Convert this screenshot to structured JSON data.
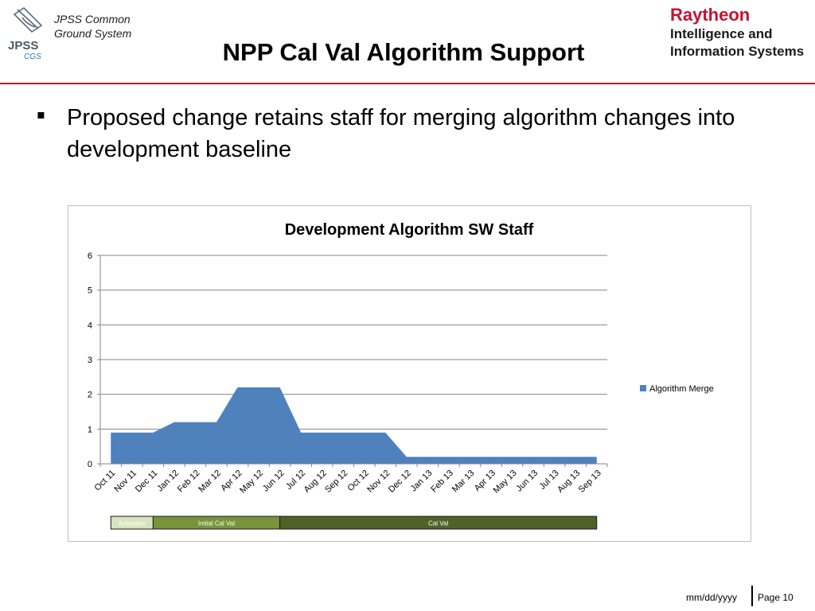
{
  "header": {
    "org_line1": "JPSS Common",
    "org_line2": "Ground System",
    "logo_text": "JPSS",
    "logo_sub": "CGS",
    "title": "NPP Cal Val Algorithm Support",
    "company": "Raytheon",
    "division_line1": "Intelligence and",
    "division_line2": "Information Systems",
    "accent_color": "#c8102e"
  },
  "body": {
    "bullet_symbol": "▪",
    "bullet_text": "Proposed change retains staff for merging algorithm changes into development baseline"
  },
  "chart_data": {
    "type": "area",
    "title": "Development Algorithm SW Staff",
    "xlabel": "",
    "ylabel": "",
    "ylim": [
      0,
      6
    ],
    "yticks": [
      0,
      1,
      2,
      3,
      4,
      5,
      6
    ],
    "grid": true,
    "legend_position": "right",
    "categories": [
      "Oct 11",
      "Nov 11",
      "Dec 11",
      "Jan 12",
      "Feb 12",
      "Mar 12",
      "Apr 12",
      "May 12",
      "Jun 12",
      "Jul 12",
      "Aug 12",
      "Sep 12",
      "Oct 12",
      "Nov 12",
      "Dec 12",
      "Jan 13",
      "Feb 13",
      "Mar 13",
      "Apr 13",
      "May 13",
      "Jun 13",
      "Jul 13",
      "Aug 13",
      "Sep 13"
    ],
    "series": [
      {
        "name": "Algorithm Merge",
        "color": "#4f81bd",
        "values": [
          0.9,
          0.9,
          0.9,
          1.2,
          1.2,
          1.2,
          2.2,
          2.2,
          2.2,
          0.9,
          0.9,
          0.9,
          0.9,
          0.9,
          0.2,
          0.2,
          0.2,
          0.2,
          0.2,
          0.2,
          0.2,
          0.2,
          0.2,
          0.2
        ]
      }
    ],
    "phases": [
      {
        "label": "Activation",
        "start": "Oct 11",
        "end": "Dec 11",
        "color": "#d7e4bd",
        "text_color": "#ffffff"
      },
      {
        "label": "Initial Cal Val",
        "start": "Dec 11",
        "end": "Jun 12",
        "color": "#77933c",
        "text_color": "#ffffff"
      },
      {
        "label": "Cal Val",
        "start": "Jun 12",
        "end": "Sep 13",
        "color": "#4f6228",
        "text_color": "#ffffff"
      }
    ]
  },
  "footer": {
    "date": "mm/dd/yyyy",
    "page": "Page 10"
  }
}
